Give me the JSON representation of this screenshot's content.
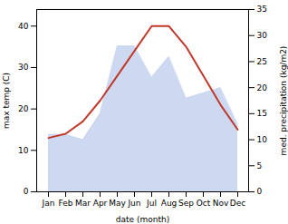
{
  "chart_data": {
    "type": "line",
    "categories": [
      "Jan",
      "Feb",
      "Mar",
      "Apr",
      "May",
      "Jun",
      "Jul",
      "Aug",
      "Sep",
      "Oct",
      "Nov",
      "Dec"
    ],
    "xlabel": "date (month)",
    "ylabel": "max temp (C)",
    "y2label": "med. precipitation (kg/m2)",
    "ylim": [
      0,
      44
    ],
    "yticks": [
      0,
      10,
      20,
      30,
      40
    ],
    "y2lim": [
      0,
      35
    ],
    "y2ticks": [
      0,
      5,
      10,
      15,
      20,
      25,
      30,
      35
    ],
    "grid": false,
    "series": [
      {
        "type": "line",
        "color": "#c0392b",
        "values": [
          13,
          14,
          17,
          22,
          28,
          34,
          40,
          40,
          35,
          28,
          21,
          15
        ]
      },
      {
        "type": "area",
        "axis": "y2",
        "color": "#c8d4f0",
        "values": [
          11,
          11,
          10,
          15,
          28,
          28,
          22,
          26,
          18,
          19,
          20,
          13
        ]
      }
    ]
  }
}
